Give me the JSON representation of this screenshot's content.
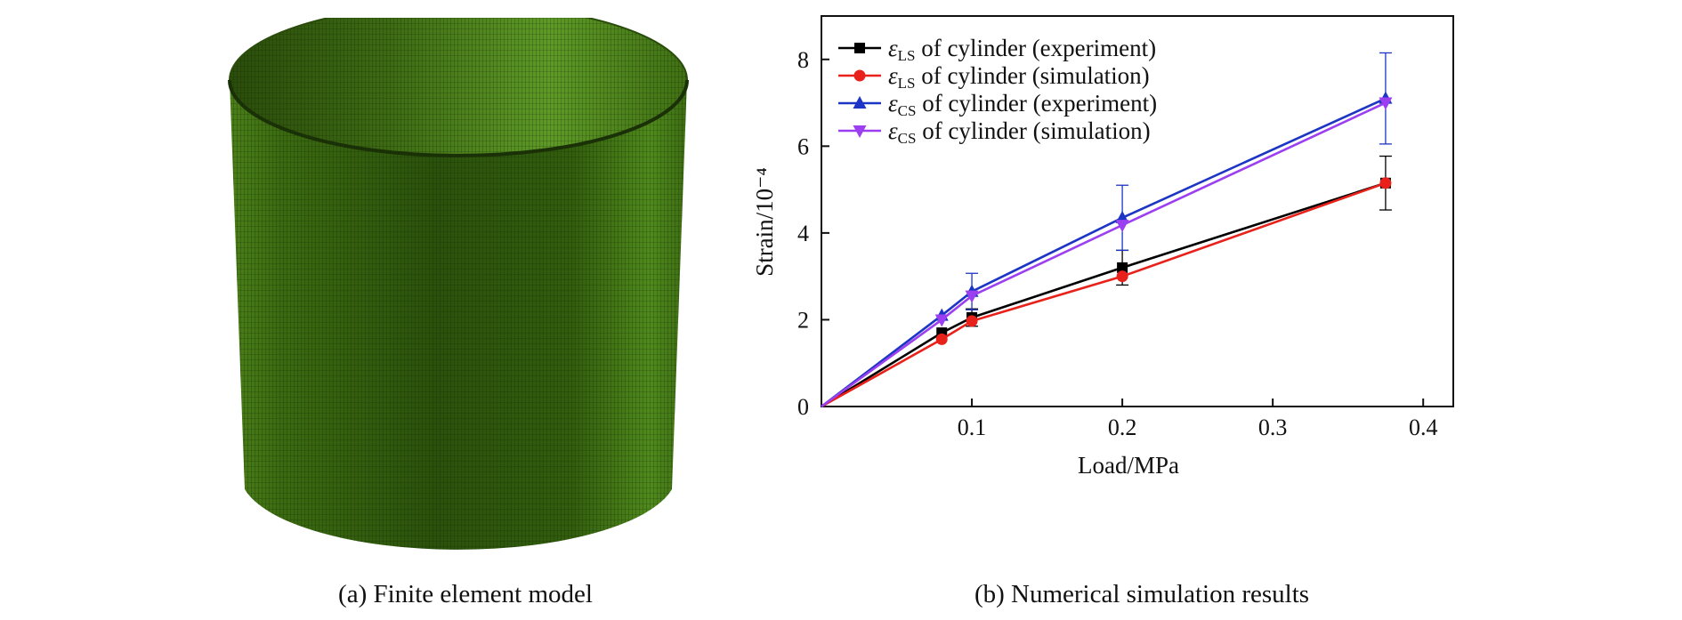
{
  "captions": {
    "a": "(a) Finite element model",
    "b": "(b) Numerical simulation results"
  },
  "model_image": {
    "description_icon": "meshed-cylinder",
    "color": "#3d6b12"
  },
  "chart_data": {
    "type": "line",
    "xlabel": "Load/MPa",
    "ylabel": "Strain/10⁻⁴",
    "xlim": [
      0,
      0.42
    ],
    "ylim": [
      0,
      9
    ],
    "xticks": [
      0.1,
      0.2,
      0.3,
      0.4
    ],
    "xticklabels": [
      "0.1",
      "0.2",
      "0.3",
      "0.4"
    ],
    "yticks": [
      0,
      2,
      4,
      6,
      8
    ],
    "yticklabels": [
      "0",
      "2",
      "4",
      "6",
      "8"
    ],
    "grid": false,
    "legend_position": "top-left",
    "series": [
      {
        "name": "ε_LS of cylinder (experiment)",
        "sym": "ε",
        "sub": "LS",
        "rest": " of cylinder (experiment)",
        "color": "#000000",
        "marker": "square",
        "x": [
          0,
          0.08,
          0.1,
          0.2,
          0.375
        ],
        "y": [
          0,
          1.7,
          2.05,
          3.2,
          5.15
        ],
        "yerr": [
          0,
          0,
          0.2,
          0.4,
          0.62
        ]
      },
      {
        "name": "ε_LS of cylinder (simulation)",
        "sym": "ε",
        "sub": "LS",
        "rest": " of cylinder (simulation)",
        "color": "#e8211b",
        "marker": "circle",
        "x": [
          0,
          0.08,
          0.1,
          0.2,
          0.375
        ],
        "y": [
          0,
          1.55,
          1.97,
          3.0,
          5.15
        ],
        "yerr": null
      },
      {
        "name": "ε_CS of cylinder (experiment)",
        "sym": "ε",
        "sub": "CS",
        "rest": " of cylinder (experiment)",
        "color": "#1c35c4",
        "marker": "triangle-up",
        "x": [
          0,
          0.08,
          0.1,
          0.2,
          0.375
        ],
        "y": [
          0,
          2.1,
          2.65,
          4.35,
          7.1
        ],
        "yerr": [
          0,
          0,
          0.42,
          0.75,
          1.05
        ]
      },
      {
        "name": "ε_CS of cylinder (simulation)",
        "sym": "ε",
        "sub": "CS",
        "rest": " of cylinder (simulation)",
        "color": "#9b3ff0",
        "marker": "triangle-down",
        "x": [
          0,
          0.08,
          0.1,
          0.2,
          0.375
        ],
        "y": [
          0,
          2.0,
          2.55,
          4.18,
          7.0
        ],
        "yerr": null
      }
    ]
  }
}
